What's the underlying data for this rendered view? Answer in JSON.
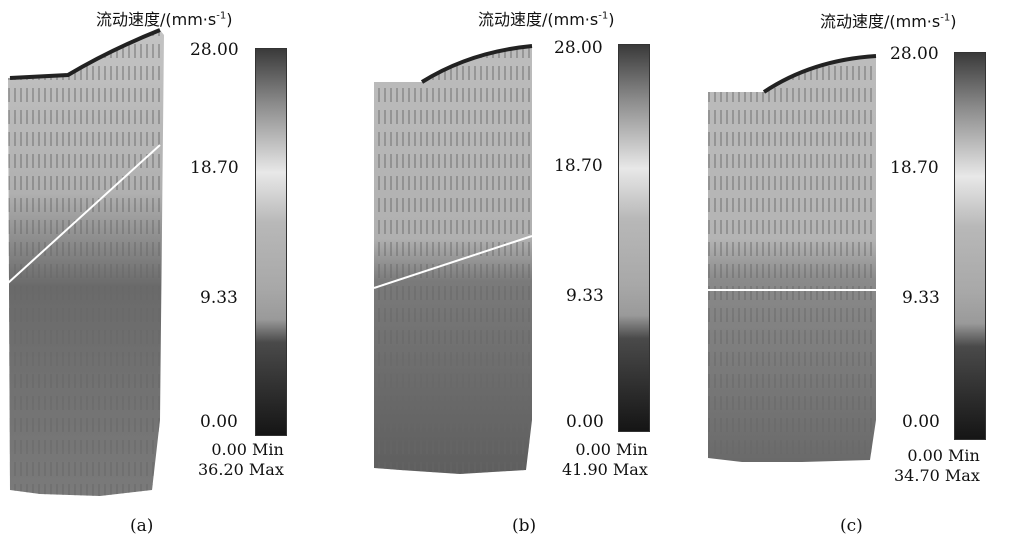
{
  "legend_title": "流动速度/(mm·s",
  "legend_title_sup": "-1",
  "legend_title_close": ")",
  "colorbar_ticks": [
    "28.00",
    "18.70",
    "9.33",
    "0.00"
  ],
  "panels": [
    {
      "caption": "(a)",
      "min_label": "0.00 Min",
      "max_label": "36.20 Max"
    },
    {
      "caption": "(b)",
      "min_label": "0.00 Min",
      "max_label": "41.90 Max"
    },
    {
      "caption": "(c)",
      "min_label": "0.00 Min",
      "max_label": "34.70 Max"
    }
  ],
  "colors": {
    "dark": "#3a3a3a",
    "light": "#d8d8d8",
    "mid": "#8c8c8c"
  }
}
